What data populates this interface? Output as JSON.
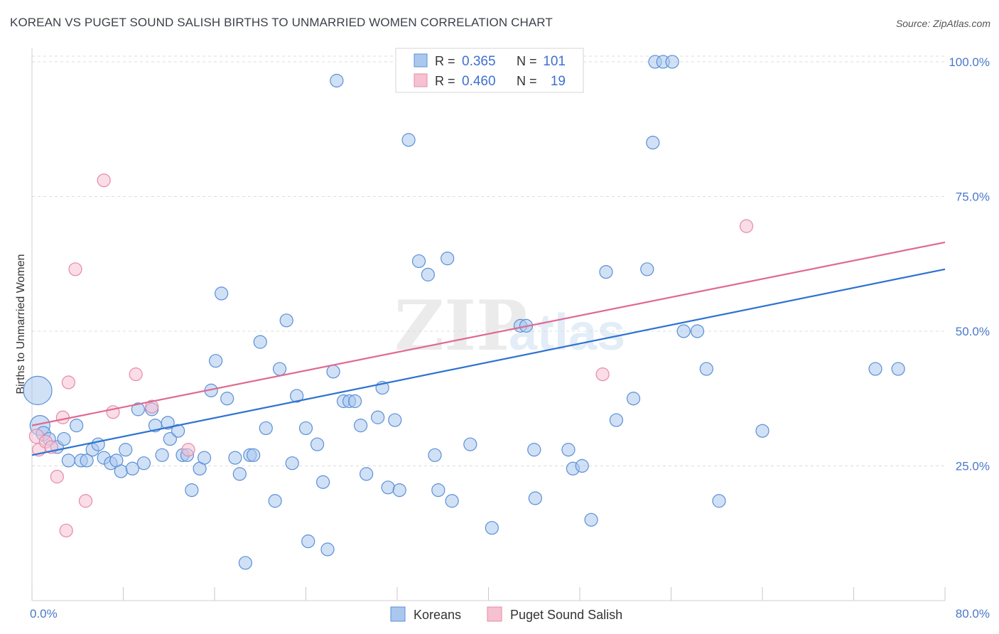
{
  "title": "KOREAN VS PUGET SOUND SALISH BIRTHS TO UNMARRIED WOMEN CORRELATION CHART",
  "source": "Source: ZipAtlas.com",
  "watermark": {
    "zip": "ZIP",
    "atlas": "atlas"
  },
  "colors": {
    "blue_fill": "#aac8ee",
    "blue_stroke": "#5b8fd6",
    "blue_line": "#2e72d2",
    "pink_fill": "#f6c1d1",
    "pink_stroke": "#e58aa8",
    "pink_line": "#e0698f",
    "grid": "#dcdcdc",
    "axis_label": "#4a78c9"
  },
  "legend": {
    "rows": [
      {
        "r_label": "R =",
        "r_value": "0.365",
        "n_label": "N =",
        "n_value": "101",
        "series": "koreans"
      },
      {
        "r_label": "R =",
        "r_value": "0.460",
        "n_label": "N =",
        "n_value": "19",
        "series": "puget"
      }
    ]
  },
  "bottom_legend": [
    {
      "label": "Koreans",
      "series": "koreans"
    },
    {
      "label": "Puget Sound Salish",
      "series": "puget"
    }
  ],
  "chart_data": {
    "type": "scatter",
    "title": "KOREAN VS PUGET SOUND SALISH BIRTHS TO UNMARRIED WOMEN CORRELATION CHART",
    "xlabel": "",
    "ylabel": "Births to Unmarried Women",
    "xlim": [
      0,
      80
    ],
    "ylim": [
      0,
      102.5
    ],
    "x_tick_labels": [
      "0.0%",
      "80.0%"
    ],
    "y_ticks": [
      {
        "value": 25,
        "label": "25.0%"
      },
      {
        "value": 50,
        "label": "50.0%"
      },
      {
        "value": 75,
        "label": "75.0%"
      },
      {
        "value": 100,
        "label": "100.0%"
      }
    ],
    "x_minor_ticks": [
      0,
      8,
      16,
      24,
      32,
      40,
      48,
      56,
      64,
      72,
      80
    ],
    "grid": "horizontal dashed",
    "legend_position": "top-center",
    "series": [
      {
        "name": "Koreans",
        "key": "koreans",
        "r": 0.365,
        "n": 101,
        "trend": [
          [
            0,
            27.0
          ],
          [
            80,
            61.5
          ]
        ],
        "points": [
          [
            0.5,
            39,
            20
          ],
          [
            0.7,
            32.5,
            14
          ],
          [
            1.0,
            31,
            10
          ],
          [
            1.5,
            30,
            9
          ],
          [
            2.2,
            28.5,
            9
          ],
          [
            2.8,
            30,
            9
          ],
          [
            3.2,
            26,
            9
          ],
          [
            3.9,
            32.5,
            9
          ],
          [
            4.3,
            26,
            9
          ],
          [
            4.8,
            26,
            9
          ],
          [
            5.3,
            28,
            9
          ],
          [
            5.8,
            29,
            9
          ],
          [
            6.3,
            26.5,
            9
          ],
          [
            6.9,
            25.5,
            9
          ],
          [
            7.4,
            26,
            9
          ],
          [
            7.8,
            24,
            9
          ],
          [
            8.2,
            28,
            9
          ],
          [
            8.8,
            24.5,
            9
          ],
          [
            9.3,
            35.5,
            9
          ],
          [
            9.8,
            25.5,
            9
          ],
          [
            10.5,
            35.5,
            9
          ],
          [
            10.8,
            32.5,
            9
          ],
          [
            11.4,
            27,
            9
          ],
          [
            11.9,
            33,
            9
          ],
          [
            12.1,
            30,
            9
          ],
          [
            12.8,
            31.5,
            9
          ],
          [
            13.2,
            27,
            9
          ],
          [
            13.6,
            27,
            9
          ],
          [
            14.0,
            20.5,
            9
          ],
          [
            14.7,
            24.5,
            9
          ],
          [
            15.1,
            26.5,
            9
          ],
          [
            15.7,
            39,
            9
          ],
          [
            16.1,
            44.5,
            9
          ],
          [
            16.6,
            57,
            9
          ],
          [
            17.1,
            37.5,
            9
          ],
          [
            17.8,
            26.5,
            9
          ],
          [
            18.2,
            23.5,
            9
          ],
          [
            18.7,
            7,
            9
          ],
          [
            19.1,
            27,
            9
          ],
          [
            19.4,
            27,
            9
          ],
          [
            20.0,
            48,
            9
          ],
          [
            20.5,
            32,
            9
          ],
          [
            21.3,
            18.5,
            9
          ],
          [
            21.7,
            43,
            9
          ],
          [
            22.3,
            52,
            9
          ],
          [
            22.8,
            25.5,
            9
          ],
          [
            23.2,
            38,
            9
          ],
          [
            24.0,
            32,
            9
          ],
          [
            24.2,
            11,
            9
          ],
          [
            25.0,
            29,
            9
          ],
          [
            25.5,
            22,
            9
          ],
          [
            25.9,
            9.5,
            9
          ],
          [
            26.4,
            42.5,
            9
          ],
          [
            26.7,
            96.5,
            9
          ],
          [
            27.3,
            37,
            9
          ],
          [
            27.8,
            37,
            9
          ],
          [
            28.3,
            37,
            9
          ],
          [
            28.8,
            32.5,
            9
          ],
          [
            29.3,
            23.5,
            9
          ],
          [
            30.3,
            34,
            9
          ],
          [
            30.7,
            39.5,
            9
          ],
          [
            31.2,
            21,
            9
          ],
          [
            31.8,
            33.5,
            9
          ],
          [
            32.2,
            20.5,
            9
          ],
          [
            32.8,
            100,
            9
          ],
          [
            33.0,
            85.5,
            9
          ],
          [
            33.9,
            63,
            9
          ],
          [
            34.7,
            60.5,
            9
          ],
          [
            35.3,
            27,
            9
          ],
          [
            35.6,
            20.5,
            9
          ],
          [
            36.4,
            63.5,
            9
          ],
          [
            36.8,
            18.5,
            9
          ],
          [
            38.4,
            29,
            9
          ],
          [
            40.3,
            13.5,
            9
          ],
          [
            42.8,
            51,
            9
          ],
          [
            43.3,
            51,
            9
          ],
          [
            44.0,
            28,
            9
          ],
          [
            44.1,
            19,
            9
          ],
          [
            45.2,
            100,
            9
          ],
          [
            46.0,
            100,
            9
          ],
          [
            47.0,
            28,
            9
          ],
          [
            47.4,
            24.5,
            9
          ],
          [
            48.2,
            25,
            9
          ],
          [
            49.0,
            15,
            9
          ],
          [
            50.3,
            61,
            9
          ],
          [
            51.2,
            33.5,
            9
          ],
          [
            52.7,
            37.5,
            9
          ],
          [
            53.9,
            61.5,
            9
          ],
          [
            54.4,
            85,
            9
          ],
          [
            54.6,
            100,
            9
          ],
          [
            55.3,
            100,
            9
          ],
          [
            56.1,
            100,
            9
          ],
          [
            57.1,
            50,
            9
          ],
          [
            58.3,
            50,
            9
          ],
          [
            59.1,
            43,
            9
          ],
          [
            60.2,
            18.5,
            9
          ],
          [
            64.0,
            31.5,
            9
          ],
          [
            73.9,
            43,
            9
          ],
          [
            75.9,
            43,
            9
          ],
          [
            36.0,
            100,
            9
          ]
        ]
      },
      {
        "name": "Puget Sound Salish",
        "key": "puget",
        "r": 0.46,
        "n": 19,
        "trend": [
          [
            0,
            32.5
          ],
          [
            80,
            66.5
          ]
        ],
        "points": [
          [
            0.4,
            30.5,
            10
          ],
          [
            0.6,
            28,
            9
          ],
          [
            1.2,
            29.5,
            9
          ],
          [
            1.7,
            28.5,
            9
          ],
          [
            2.2,
            23,
            9
          ],
          [
            2.7,
            34,
            9
          ],
          [
            3.0,
            13,
            9
          ],
          [
            3.2,
            40.5,
            9
          ],
          [
            3.8,
            61.5,
            9
          ],
          [
            4.7,
            18.5,
            9
          ],
          [
            6.3,
            78,
            9
          ],
          [
            7.1,
            35,
            9
          ],
          [
            9.1,
            42,
            9
          ],
          [
            10.5,
            36,
            9
          ],
          [
            13.7,
            28,
            9
          ],
          [
            50.0,
            42,
            9
          ],
          [
            62.6,
            69.5,
            9
          ]
        ]
      }
    ]
  }
}
